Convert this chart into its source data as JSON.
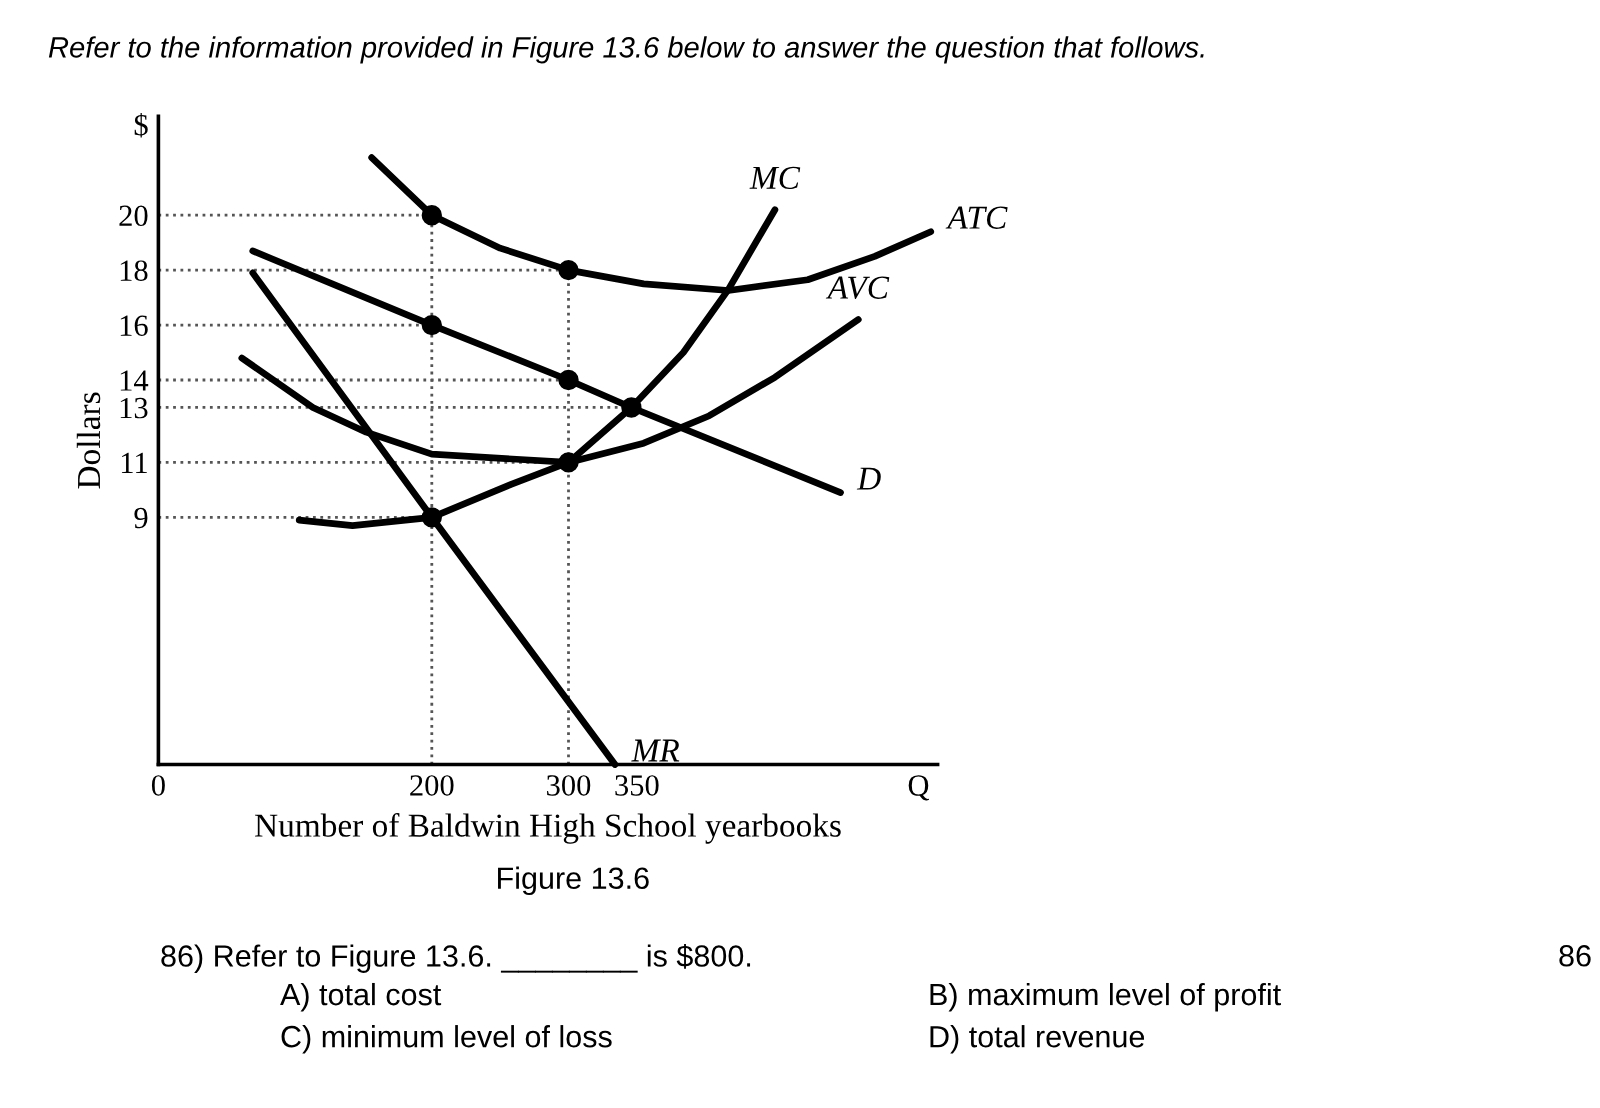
{
  "chart_data": {
    "type": "line",
    "title": "Refer to the information provided in Figure 13.6 below to answer the question that follows.",
    "xlabel": "Number of Baldwin High School yearbooks",
    "ylabel": "Dollars",
    "xlim": [
      0,
      570
    ],
    "ylim": [
      0,
      23.6
    ],
    "xticks": [
      0,
      200,
      300,
      350,
      {
        "value": 556,
        "label": "Q"
      }
    ],
    "yticks": [
      9,
      11,
      13,
      14,
      16,
      18,
      20,
      {
        "value": 23.3,
        "label": "$"
      }
    ],
    "series": [
      {
        "name": "ATC",
        "color": "#000000",
        "x": [
          156,
          200,
          250,
          300,
          355,
          417,
          475,
          524,
          565
        ],
        "values": [
          22.1,
          20,
          18.8,
          18,
          17.5,
          17.26,
          17.65,
          18.5,
          19.4
        ]
      },
      {
        "name": "MC",
        "color": "#000000",
        "x": [
          103,
          142,
          200,
          258,
          300,
          346,
          384,
          417,
          451
        ],
        "values": [
          8.9,
          8.7,
          9,
          10.2,
          11,
          13,
          15,
          17.3,
          20.2
        ]
      },
      {
        "name": "AVC",
        "color": "#000000",
        "x": [
          61,
          113,
          152,
          200,
          300,
          355,
          403,
          451,
          512
        ],
        "values": [
          14.8,
          13,
          12.1,
          11.3,
          11,
          11.7,
          12.7,
          14.1,
          16.2
        ]
      },
      {
        "name": "D",
        "color": "#000000",
        "x": [
          69,
          200,
          300,
          346,
          499
        ],
        "values": [
          18.7,
          16,
          14,
          13,
          9.9
        ]
      },
      {
        "name": "MR",
        "color": "#000000",
        "x": [
          69,
          200,
          334
        ],
        "values": [
          17.9,
          9,
          0
        ]
      },
      {
        "color": "#555555",
        "line_style": "dotted",
        "x": [
          0,
          200
        ],
        "values": [
          20,
          20
        ]
      },
      {
        "color": "#555555",
        "line_style": "dotted",
        "x": [
          0,
          300
        ],
        "values": [
          18,
          18
        ]
      },
      {
        "color": "#555555",
        "line_style": "dotted",
        "x": [
          0,
          200
        ],
        "values": [
          16,
          16
        ]
      },
      {
        "color": "#555555",
        "line_style": "dotted",
        "x": [
          0,
          300
        ],
        "values": [
          14,
          14
        ]
      },
      {
        "color": "#555555",
        "line_style": "dotted",
        "x": [
          0,
          346
        ],
        "values": [
          13,
          13
        ]
      },
      {
        "color": "#555555",
        "line_style": "dotted",
        "x": [
          0,
          300
        ],
        "values": [
          11,
          11
        ]
      },
      {
        "color": "#555555",
        "line_style": "dotted",
        "x": [
          0,
          200
        ],
        "values": [
          9,
          9
        ]
      },
      {
        "color": "#555555",
        "line_style": "dotted",
        "x": [
          200,
          200
        ],
        "values": [
          0,
          20
        ]
      },
      {
        "color": "#555555",
        "line_style": "dotted",
        "x": [
          300,
          300
        ],
        "values": [
          0,
          18
        ]
      },
      {
        "type": "scatter",
        "marker": "circle",
        "color": "#000000",
        "x": [
          200,
          300,
          200,
          300,
          346,
          300,
          200
        ],
        "values": [
          20,
          18,
          16,
          14,
          13,
          11,
          9
        ]
      }
    ],
    "annotations": [
      "Figure 13.6",
      "86) Refer to Figure 13.6. ________ is $800.",
      "A) total cost",
      "B) maximum level of profit",
      "C) minimum level of loss",
      "D) total revenue",
      "86"
    ]
  }
}
